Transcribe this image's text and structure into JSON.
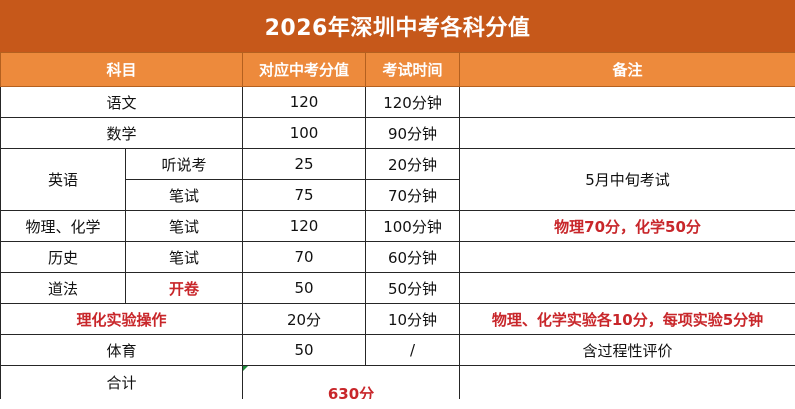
{
  "title": "2026年深圳中考各科分值",
  "headers": {
    "subject": "科目",
    "score": "对应中考分值",
    "time": "考试时间",
    "remark": "备注"
  },
  "rows": {
    "chinese": {
      "subject": "语文",
      "score": "120",
      "time": "120分钟",
      "remark": ""
    },
    "math": {
      "subject": "数学",
      "score": "100",
      "time": "90分钟",
      "remark": ""
    },
    "english": {
      "subject": "英语",
      "remark": "5月中旬考试",
      "listening": {
        "part": "听说考",
        "score": "25",
        "time": "20分钟"
      },
      "written": {
        "part": "笔试",
        "score": "75",
        "time": "70分钟"
      }
    },
    "physchem": {
      "subject": "物理、化学",
      "part": "笔试",
      "score": "120",
      "time": "100分钟",
      "remark": "物理70分，化学50分"
    },
    "history": {
      "subject": "历史",
      "part": "笔试",
      "score": "70",
      "time": "60分钟",
      "remark": ""
    },
    "ethics": {
      "subject": "道法",
      "part": "开卷",
      "score": "50",
      "time": "50分钟",
      "remark": ""
    },
    "lab": {
      "subject": "理化实验操作",
      "score": "20分",
      "time": "10分钟",
      "remark": "物理、化学实验各10分，每项实验5分钟"
    },
    "pe": {
      "subject": "体育",
      "score": "50",
      "time": "/",
      "remark": "含过程性评价"
    },
    "total": {
      "subject": "合计",
      "score": "630分"
    }
  },
  "colors": {
    "title_bg": "#c6581a",
    "header_bg": "#ed8a3c",
    "highlight": "#c8262a"
  }
}
